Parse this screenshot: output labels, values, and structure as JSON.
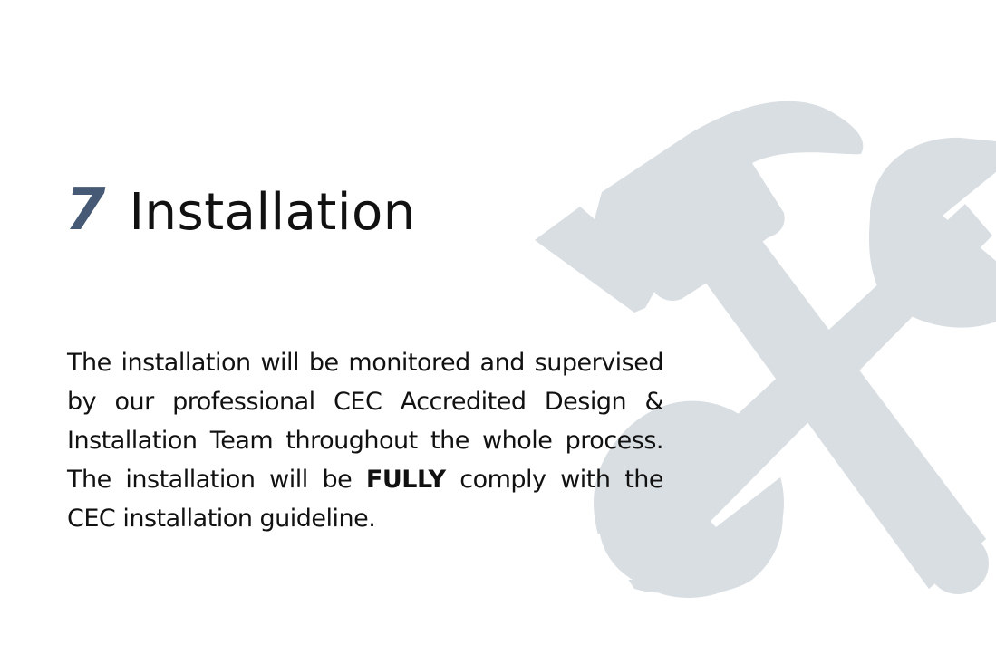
{
  "section": {
    "number": "7",
    "title": "Installation"
  },
  "body": {
    "part1": "The installation will be monitored and supervised by our professional CEC Accredited Design & Installation Team throughout the whole process. The installation will be ",
    "emphasis": "FULLY",
    "part2": " comply with the CEC installation guideline."
  },
  "background": {
    "icon": "hammer-wrench-icon",
    "color": "#d9dee3"
  },
  "colors": {
    "accent": "#465a75",
    "text": "#111111"
  }
}
